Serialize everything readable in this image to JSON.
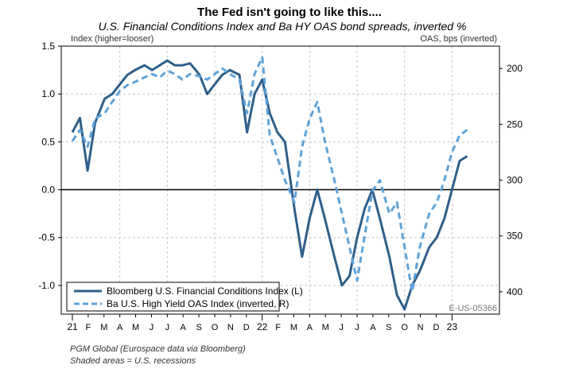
{
  "chart_data": {
    "type": "line",
    "title": "The Fed isn't going to like this....",
    "subtitle": "U.S. Financial Conditions Index and Ba HY OAS bond spreads, inverted %",
    "left_axis_label": "Index (higher=looser)",
    "right_axis_label": "OAS, bps (inverted)",
    "left_ylim": [
      -1.3,
      1.5
    ],
    "right_ylim": [
      420,
      180
    ],
    "left_ticks": [
      "1.5",
      "1.0",
      "0.5",
      "0.0",
      "-0.5",
      "-1.0"
    ],
    "right_ticks": [
      "200",
      "250",
      "300",
      "350",
      "400"
    ],
    "x_ticks": [
      "21",
      "F",
      "M",
      "A",
      "M",
      "J",
      "J",
      "A",
      "S",
      "O",
      "N",
      "D",
      "22",
      "F",
      "M",
      "A",
      "M",
      "J",
      "J",
      "A",
      "S",
      "O",
      "N",
      "D",
      "23"
    ],
    "grid": true,
    "legend_placement": "bottom-left",
    "series": [
      {
        "name": "Bloomberg U.S. Financial Conditions Index (L)",
        "axis": "left",
        "style": "solid",
        "color": "#2f5f8a",
        "x": [
          2021.0,
          2021.04,
          2021.08,
          2021.12,
          2021.17,
          2021.21,
          2021.25,
          2021.29,
          2021.33,
          2021.38,
          2021.42,
          2021.46,
          2021.5,
          2021.54,
          2021.58,
          2021.62,
          2021.67,
          2021.71,
          2021.75,
          2021.79,
          2021.83,
          2021.88,
          2021.92,
          2021.96,
          2022.0,
          2022.04,
          2022.08,
          2022.12,
          2022.17,
          2022.21,
          2022.25,
          2022.29,
          2022.33,
          2022.38,
          2022.42,
          2022.46,
          2022.5,
          2022.54,
          2022.58,
          2022.62,
          2022.67,
          2022.71,
          2022.75,
          2022.79,
          2022.83,
          2022.88,
          2022.92,
          2022.96,
          2023.0,
          2023.04,
          2023.08
        ],
        "values": [
          0.6,
          0.75,
          0.2,
          0.7,
          0.95,
          1.0,
          1.1,
          1.2,
          1.25,
          1.3,
          1.25,
          1.3,
          1.35,
          1.3,
          1.3,
          1.32,
          1.2,
          1.0,
          1.1,
          1.2,
          1.25,
          1.2,
          0.6,
          1.0,
          1.15,
          0.8,
          0.6,
          0.5,
          -0.2,
          -0.7,
          -0.3,
          0.0,
          -0.3,
          -0.7,
          -1.0,
          -0.9,
          -0.5,
          -0.2,
          0.0,
          -0.3,
          -0.7,
          -1.1,
          -1.25,
          -1.0,
          -0.85,
          -0.6,
          -0.5,
          -0.3,
          0.0,
          0.3,
          0.35
        ]
      },
      {
        "name": "Ba U.S. High Yield OAS Index (inverted, R)",
        "axis": "right",
        "style": "dashed",
        "color": "#5fa3d9",
        "x": [
          2021.0,
          2021.04,
          2021.08,
          2021.12,
          2021.17,
          2021.21,
          2021.25,
          2021.29,
          2021.33,
          2021.38,
          2021.42,
          2021.46,
          2021.5,
          2021.54,
          2021.58,
          2021.62,
          2021.67,
          2021.71,
          2021.75,
          2021.79,
          2021.83,
          2021.88,
          2021.92,
          2021.96,
          2022.0,
          2022.04,
          2022.08,
          2022.12,
          2022.17,
          2022.21,
          2022.25,
          2022.29,
          2022.33,
          2022.38,
          2022.42,
          2022.46,
          2022.5,
          2022.54,
          2022.58,
          2022.62,
          2022.67,
          2022.71,
          2022.75,
          2022.79,
          2022.83,
          2022.88,
          2022.92,
          2022.96,
          2023.0,
          2023.04,
          2023.08
        ],
        "values": [
          265,
          255,
          270,
          245,
          240,
          230,
          220,
          215,
          212,
          208,
          205,
          208,
          202,
          205,
          210,
          205,
          207,
          210,
          205,
          200,
          205,
          210,
          240,
          205,
          190,
          260,
          280,
          300,
          320,
          270,
          245,
          230,
          265,
          300,
          330,
          360,
          390,
          350,
          310,
          300,
          330,
          320,
          360,
          400,
          360,
          330,
          320,
          300,
          275,
          260,
          255
        ]
      }
    ]
  },
  "footer": {
    "source": "PGM Global (Eurospace data via Bloomberg)",
    "note": "Shaded areas = U.S. recessions",
    "code": "E-US-05366"
  }
}
